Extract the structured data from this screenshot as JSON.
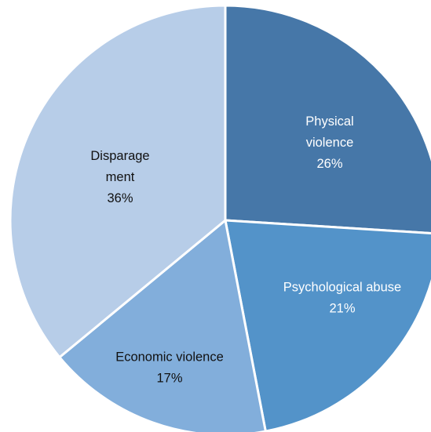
{
  "chart_data": {
    "type": "pie",
    "title": "",
    "slices": [
      {
        "label_lines": [
          "Physical",
          "violence"
        ],
        "pct_label": "26%",
        "value": 26,
        "color": "#4677a8",
        "text_color": "#ffffff"
      },
      {
        "label_lines": [
          "Psychological abuse"
        ],
        "pct_label": "21%",
        "value": 21,
        "color": "#5393c9",
        "text_color": "#ffffff"
      },
      {
        "label_lines": [
          "Economic violence"
        ],
        "pct_label": "17%",
        "value": 17,
        "color": "#82aedb",
        "text_color": "#111111"
      },
      {
        "label_lines": [
          "Disparage",
          "ment"
        ],
        "pct_label": "36%",
        "value": 36,
        "color": "#b7cde8",
        "text_color": "#111111"
      }
    ],
    "start_angle_deg": 0,
    "direction": "clockwise",
    "legend": "none"
  }
}
